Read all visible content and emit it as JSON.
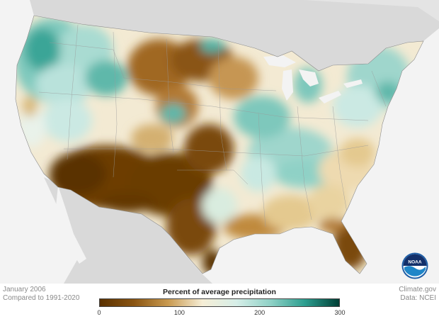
{
  "caption_left": {
    "line1": "January 2006",
    "line2": "Compared to 1991-2020"
  },
  "caption_right": {
    "line1": "Climate.gov",
    "line2": "Data: NCEI"
  },
  "legend": {
    "title": "Percent of average precipitation",
    "ticks": [
      "0",
      "100",
      "200",
      "300"
    ],
    "colors": [
      "#5a3100",
      "#8a5512",
      "#c99a50",
      "#f6eed6",
      "#d6eee8",
      "#8fd1c6",
      "#2c9e8f",
      "#003e35"
    ]
  },
  "logo": {
    "text": "NOAA"
  },
  "map": {
    "land_color": "#d9d9d9",
    "ocean_color": "#f3f3f3",
    "regions": [
      {
        "name": "pacific-northwest",
        "category": "wet"
      },
      {
        "name": "northern-plains",
        "category": "dry"
      },
      {
        "name": "southwest",
        "category": "very dry"
      },
      {
        "name": "texas",
        "category": "very dry"
      },
      {
        "name": "ohio-valley",
        "category": "wet"
      },
      {
        "name": "northeast",
        "category": "wet"
      },
      {
        "name": "florida",
        "category": "very dry"
      },
      {
        "name": "southeast-coast",
        "category": "dry"
      }
    ]
  }
}
